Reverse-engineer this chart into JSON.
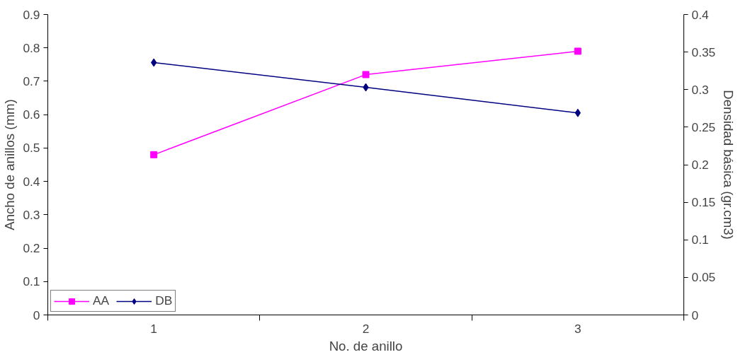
{
  "chart_data": {
    "type": "line",
    "xlabel": "No. de anillo",
    "ylabel": "Ancho de anillos (mm)",
    "y2label": "Densidad básica (gr.cm3)",
    "categories": [
      "1",
      "2",
      "3"
    ],
    "series": [
      {
        "name": "AA",
        "color": "#ff00ff",
        "marker": "square",
        "values": [
          0.48,
          0.72,
          0.79
        ]
      },
      {
        "name": "DB",
        "color": "#000080",
        "marker": "diamond",
        "axis": "y2",
        "values": [
          0.336,
          0.303,
          0.269
        ]
      }
    ],
    "ylim": [
      0,
      0.9
    ],
    "yticks": [
      0,
      0.1,
      0.2,
      0.3,
      0.4,
      0.5,
      0.6,
      0.7,
      0.8,
      0.9
    ],
    "y2lim": [
      0,
      0.4
    ],
    "y2ticks": [
      0,
      0.05,
      0.1,
      0.15,
      0.2,
      0.25,
      0.3,
      0.35,
      0.4
    ],
    "grid": false,
    "legend": "bottom left"
  }
}
